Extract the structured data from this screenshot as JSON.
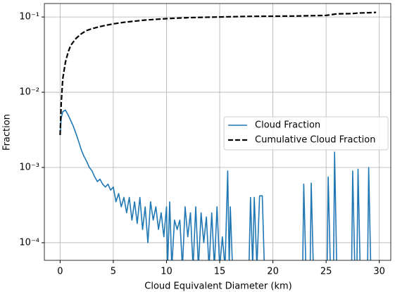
{
  "chart_data": {
    "type": "line",
    "xlabel": "Cloud Equivalent Diameter (km)",
    "ylabel": "Fraction",
    "xlim": [
      -1.48,
      31.08
    ],
    "xticks": [
      0,
      5,
      10,
      15,
      20,
      25,
      30
    ],
    "ylim": [
      5.83e-05,
      0.151
    ],
    "yscale": "log",
    "yticks": [
      {
        "value": 0.0001,
        "label": "10⁻⁴"
      },
      {
        "value": 0.001,
        "label": "10⁻³"
      },
      {
        "value": 0.01,
        "label": "10⁻²"
      },
      {
        "value": 0.1,
        "label": "10⁻¹"
      }
    ],
    "grid": true,
    "legend": "center right",
    "series": [
      {
        "name": "Cloud Fraction",
        "color": "#1f77b4",
        "linestyle": "solid",
        "x": [
          0,
          0.1,
          0.25,
          0.5,
          0.75,
          1,
          1.25,
          1.5,
          1.75,
          2,
          2.25,
          2.5,
          2.75,
          3,
          3.25,
          3.5,
          3.75,
          4,
          4.25,
          4.5,
          4.75,
          5,
          5.25,
          5.5,
          5.75,
          6,
          6.25,
          6.5,
          6.75,
          7,
          7.25,
          7.5,
          7.75,
          8,
          8.25,
          8.5,
          8.75,
          9,
          9.25,
          9.5,
          9.75,
          10,
          10.1,
          10.3,
          10.5,
          10.75,
          11,
          11.25,
          11.5,
          11.75,
          12,
          12.25,
          12.5,
          12.75,
          13,
          13.25,
          13.5,
          13.75,
          14,
          14.25,
          14.5,
          14.75,
          15,
          15.25,
          15.5,
          15.75,
          15.9,
          16,
          16.2,
          17.75,
          17.9,
          18.1,
          18.25,
          18.5,
          18.75,
          19,
          19.2,
          22.8,
          22.9,
          23.1,
          23.5,
          23.6,
          23.8,
          25.1,
          25.2,
          25.4,
          25.7,
          25.8,
          26,
          27.4,
          27.5,
          27.7,
          27.9,
          28,
          28.2,
          28.9,
          29,
          29.2
        ],
        "values": [
          0.0027,
          0.0045,
          0.0055,
          0.0058,
          0.005,
          0.0042,
          0.0035,
          0.0028,
          0.0022,
          0.0017,
          0.0014,
          0.0012,
          0.001,
          0.0009,
          0.00075,
          0.00065,
          0.0007,
          0.0006,
          0.00055,
          0.0006,
          0.0005,
          0.00055,
          0.00035,
          0.00045,
          0.0003,
          0.0004,
          0.00025,
          0.0004,
          0.0002,
          0.00035,
          0.00018,
          0.0004,
          0.00015,
          0.0003,
          0.0001,
          0.00035,
          0.0002,
          0.0003,
          0.00015,
          0.00025,
          0.00012,
          0.0003,
          0,
          0.00035,
          0,
          0.0002,
          0.00015,
          0.0002,
          0,
          0.0003,
          0.00012,
          0.00025,
          0,
          0.0003,
          0,
          0.00025,
          0.0001,
          0.00022,
          0,
          0.00025,
          0,
          0.0003,
          0,
          0.00012,
          0,
          0.0009,
          0,
          0.0003,
          0,
          0,
          0.0004,
          0,
          0.0004,
          0,
          0.00042,
          0.00042,
          0,
          0,
          0.0006,
          0,
          0,
          0.00062,
          0,
          0,
          0.00075,
          0,
          0,
          0.0016,
          0,
          0,
          0.0009,
          0,
          0,
          0.00095,
          0,
          0,
          0.001,
          0
        ]
      },
      {
        "name": "Cumulative Cloud Fraction",
        "color": "#000000",
        "linestyle": "dashed",
        "x": [
          0,
          0.1,
          0.25,
          0.5,
          0.75,
          1,
          1.5,
          2,
          2.5,
          3,
          4,
          5,
          6,
          7,
          8,
          10,
          12,
          15,
          18,
          22,
          25,
          26,
          27.5,
          28,
          29,
          29.7
        ],
        "values": [
          0.0027,
          0.007,
          0.015,
          0.025,
          0.034,
          0.042,
          0.052,
          0.06,
          0.066,
          0.07,
          0.076,
          0.081,
          0.085,
          0.088,
          0.091,
          0.095,
          0.098,
          0.1,
          0.102,
          0.103,
          0.105,
          0.11,
          0.111,
          0.113,
          0.114,
          0.115
        ]
      }
    ]
  }
}
